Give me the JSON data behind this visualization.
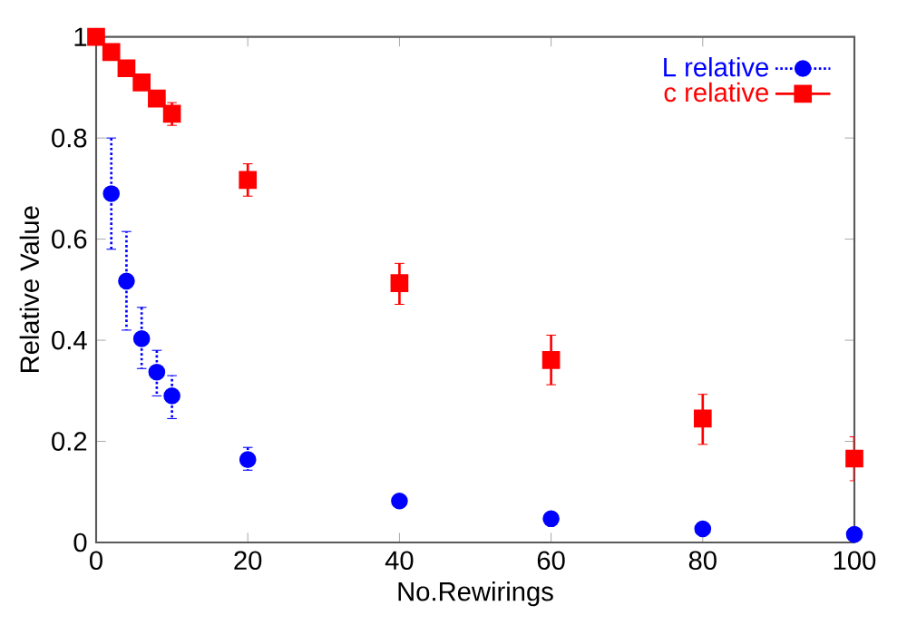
{
  "chart_data": {
    "type": "scatter",
    "xlabel": "No.Rewirings",
    "ylabel": "Relative Value",
    "xlim": [
      0,
      100
    ],
    "ylim": [
      0,
      1
    ],
    "xticks": [
      0,
      20,
      40,
      60,
      80,
      100
    ],
    "yticks": [
      0,
      0.2,
      0.4,
      0.6,
      0.8,
      1
    ],
    "grid": false,
    "legend": "top right",
    "series": [
      {
        "name": "L relative",
        "color": "#0000ff",
        "marker": "circle",
        "line_style": "dotted",
        "x": [
          2,
          4,
          6,
          8,
          10,
          20,
          40,
          60,
          80,
          100
        ],
        "values": [
          0.69,
          0.517,
          0.403,
          0.337,
          0.29,
          0.164,
          0.082,
          0.047,
          0.027,
          0.016
        ],
        "errors": [
          [
            0.58,
            0.8
          ],
          [
            0.42,
            0.615
          ],
          [
            0.344,
            0.465
          ],
          [
            0.29,
            0.38
          ],
          [
            0.245,
            0.33
          ],
          [
            0.143,
            0.188
          ],
          null,
          null,
          null,
          null
        ]
      },
      {
        "name": "c relative",
        "color": "#ff0000",
        "marker": "square",
        "line_style": "solid",
        "x": [
          0,
          2,
          4,
          6,
          8,
          10,
          20,
          40,
          60,
          80,
          100
        ],
        "values": [
          1.0,
          0.97,
          0.938,
          0.91,
          0.878,
          0.848,
          0.717,
          0.513,
          0.361,
          0.245,
          0.166
        ],
        "errors": [
          null,
          null,
          null,
          null,
          [
            0.865,
            0.892
          ],
          [
            0.825,
            0.87
          ],
          [
            0.685,
            0.749
          ],
          [
            0.471,
            0.552
          ],
          [
            0.312,
            0.41
          ],
          [
            0.194,
            0.293
          ],
          [
            0.122,
            0.209
          ]
        ]
      }
    ]
  }
}
